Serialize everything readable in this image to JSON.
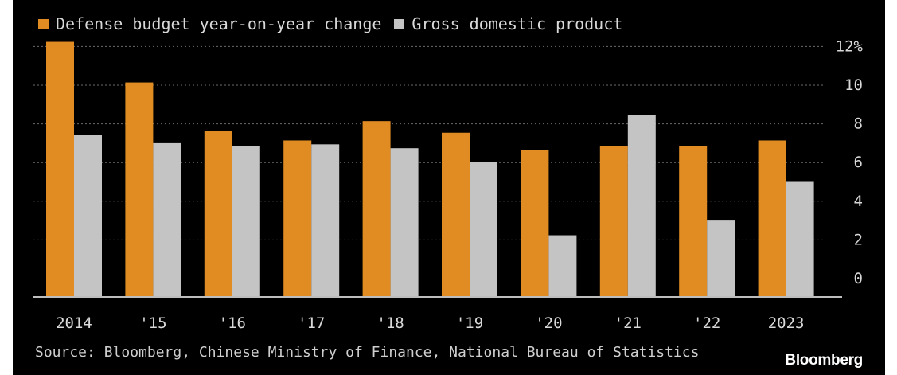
{
  "colors": {
    "background": "#000000",
    "defense": "#e08c23",
    "gdp": "#c4c4c4",
    "text": "#d9d9d9",
    "grid": "#6a6a6a"
  },
  "chart_data": {
    "type": "bar",
    "title": "",
    "xlabel": "",
    "ylabel": "",
    "categories": [
      "2014",
      "'15",
      "'16",
      "'17",
      "'18",
      "'19",
      "'20",
      "'21",
      "'22",
      "2023"
    ],
    "series": [
      {
        "name": "Defense budget year-on-year change",
        "color": "#e08c23",
        "values": [
          12.2,
          10.1,
          7.6,
          7.1,
          8.1,
          7.5,
          6.6,
          6.8,
          6.8,
          7.1
        ]
      },
      {
        "name": "Gross domestic product",
        "color": "#c4c4c4",
        "values": [
          7.4,
          7.0,
          6.8,
          6.9,
          6.7,
          6.0,
          2.2,
          8.4,
          3.0,
          5.0
        ]
      }
    ],
    "y_ticks": [
      "0",
      "2",
      "4",
      "6",
      "8",
      "10",
      "12%"
    ],
    "ylim": [
      -1,
      12
    ],
    "grid": true,
    "grid_style": "dotted",
    "y_axis_side": "right",
    "legend_position": "top-left"
  },
  "source_text": "Source: Bloomberg, Chinese Ministry of Finance, National Bureau of Statistics",
  "brand": "Bloomberg"
}
